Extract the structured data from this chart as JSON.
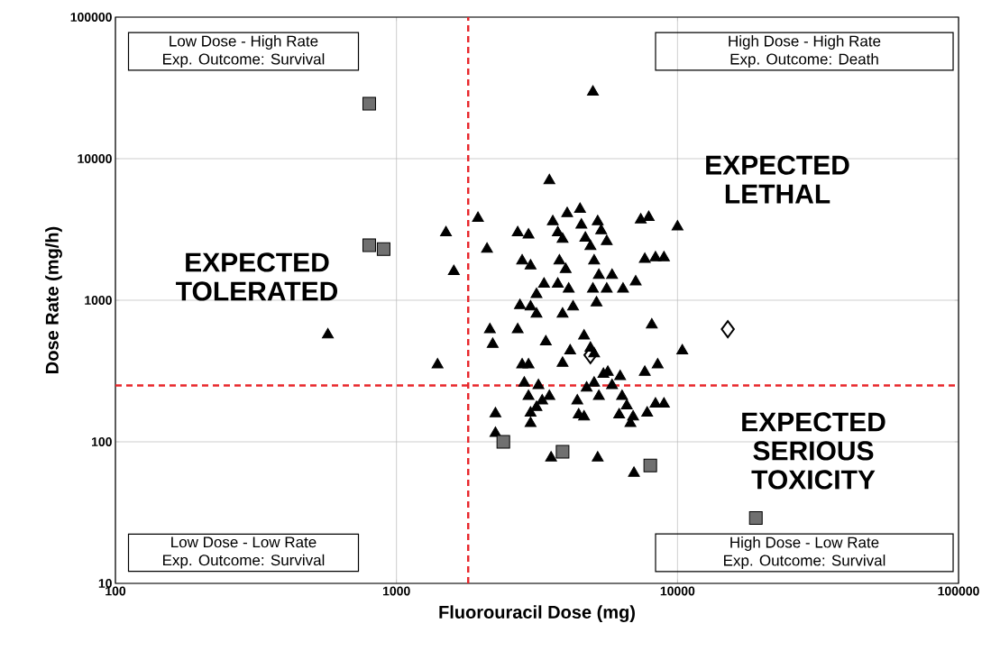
{
  "chart_data": {
    "type": "scatter",
    "xlabel": "Fluorouracil Dose (mg)",
    "ylabel": "Dose Rate (mg/h)",
    "log": "xy",
    "grid": true,
    "xlim": [
      100,
      100000
    ],
    "ylim": [
      10,
      100000
    ],
    "xticks": [
      100,
      1000,
      10000,
      100000
    ],
    "yticks": [
      10,
      100,
      1000,
      10000,
      100000
    ],
    "ref_lines": [
      {
        "axis": "x",
        "value": 1800,
        "color": "#e8262a",
        "line_style": "dashed"
      },
      {
        "axis": "y",
        "value": 250,
        "color": "#e8262a",
        "line_style": "dashed"
      }
    ],
    "annotations": [
      "Low Dose - High Rate",
      "Exp. Outcome: Survival",
      "High Dose - High Rate",
      "Exp. Outcome: Death",
      "Low Dose - Low Rate",
      "Exp. Outcome: Survival",
      "High Dose - Low Rate",
      "Exp. Outcome: Survival",
      "EXPECTED",
      "TOLERATED",
      "EXPECTED",
      "LETHAL",
      "EXPECTED",
      "SERIOUS",
      "TOXICITY"
    ],
    "series": [
      {
        "color": "#000000",
        "marker": "triangle",
        "x": [
          570,
          1400,
          1500,
          1600,
          1950,
          2100,
          2150,
          2200,
          2250,
          2250,
          3500,
          2700,
          2950,
          2800,
          3000,
          2750,
          3000,
          3150,
          3350,
          3150,
          3400,
          2700,
          2800,
          2950,
          2850,
          2950,
          3000,
          3000,
          3150,
          3550,
          3600,
          3750,
          3900,
          3800,
          4000,
          3750,
          4100,
          4250,
          3900,
          4050,
          4500,
          4550,
          4700,
          4900,
          5200,
          5350,
          5600,
          5050,
          5250,
          5000,
          5150,
          5600,
          5850,
          6400,
          7100,
          4650,
          4900,
          5050,
          3900,
          4400,
          4750,
          5050,
          5250,
          5450,
          5650,
          5850,
          6250,
          6350,
          6600,
          6200,
          6800,
          6950,
          7800,
          8350,
          8950,
          7650,
          8500,
          8100,
          7650,
          8350,
          8950,
          7400,
          7900,
          10000,
          10400,
          5000,
          5200,
          7000,
          4450,
          4650,
          3200,
          3300,
          3500,
          4150
        ],
        "values": [
          570,
          350,
          3000,
          1600,
          3800,
          2300,
          620,
          490,
          158,
          115,
          7000,
          3000,
          2900,
          1900,
          1750,
          920,
          900,
          1100,
          1300,
          800,
          510,
          620,
          350,
          350,
          260,
          210,
          160,
          135,
          175,
          77,
          3600,
          3000,
          2700,
          1900,
          1650,
          1300,
          1200,
          900,
          800,
          4100,
          4400,
          3400,
          2750,
          2400,
          3600,
          3100,
          2600,
          1900,
          1500,
          1200,
          960,
          1200,
          1500,
          1200,
          1350,
          560,
          460,
          420,
          360,
          195,
          240,
          260,
          210,
          300,
          310,
          250,
          290,
          210,
          180,
          155,
          135,
          150,
          160,
          185,
          185,
          310,
          350,
          670,
          1950,
          2000,
          2000,
          3700,
          3850,
          3300,
          440,
          29600,
          77,
          60,
          155,
          150,
          250,
          195,
          210,
          440
        ]
      },
      {
        "color": "#707070",
        "marker": "square",
        "x": [
          800,
          800,
          900,
          2400,
          3900,
          8000,
          19000
        ],
        "values": [
          24500,
          2450,
          2300,
          100,
          85,
          68,
          29
        ]
      },
      {
        "color": "#000000",
        "marker": "diamond",
        "x": [
          15100,
          4900
        ],
        "values": [
          625,
          410
        ]
      }
    ]
  }
}
